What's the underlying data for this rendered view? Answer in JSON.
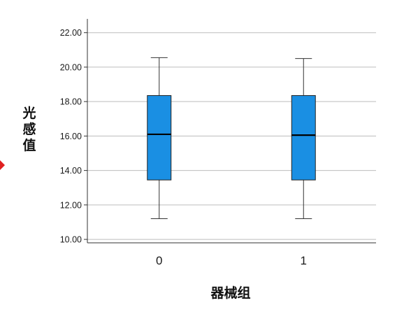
{
  "chart_data": {
    "type": "boxplot",
    "xlabel": "器械组",
    "ylabel": "光感值",
    "categories": [
      "0",
      "1"
    ],
    "ylim": [
      9.8,
      22.8
    ],
    "yticks": [
      "10.00",
      "12.00",
      "14.00",
      "16.00",
      "18.00",
      "20.00",
      "22.00"
    ],
    "grid": "horizontal",
    "box_color": "#1a8fe3",
    "marker_color": "#e02020",
    "boxes": [
      {
        "category": "0",
        "min": 11.2,
        "q1": 13.45,
        "median": 16.1,
        "q3": 18.35,
        "max": 20.55
      },
      {
        "category": "1",
        "min": 11.2,
        "q1": 13.45,
        "median": 16.05,
        "q3": 18.35,
        "max": 20.5
      }
    ]
  }
}
